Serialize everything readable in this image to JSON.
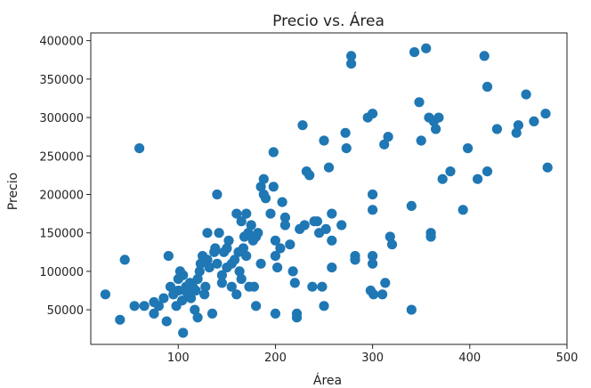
{
  "chart_data": {
    "type": "scatter",
    "title": "Precio vs. Área",
    "xlabel": "Área",
    "ylabel": "Precio",
    "xlim": [
      10,
      500
    ],
    "ylim": [
      5000,
      410000
    ],
    "xticks": [
      100,
      200,
      300,
      400,
      500
    ],
    "yticks": [
      50000,
      100000,
      150000,
      200000,
      250000,
      300000,
      350000,
      400000
    ],
    "xtick_labels": [
      "100",
      "200",
      "300",
      "400",
      "500"
    ],
    "ytick_labels": [
      "50000",
      "100000",
      "150000",
      "200000",
      "250000",
      "300000",
      "350000",
      "400000"
    ],
    "grid": false,
    "marker_color": "#1f77b4",
    "points": [
      [
        25,
        70000
      ],
      [
        40,
        37000
      ],
      [
        45,
        115000
      ],
      [
        55,
        55000
      ],
      [
        60,
        260000
      ],
      [
        65,
        55000
      ],
      [
        75,
        45000
      ],
      [
        75,
        60000
      ],
      [
        80,
        55000
      ],
      [
        85,
        65000
      ],
      [
        88,
        35000
      ],
      [
        90,
        120000
      ],
      [
        92,
        80000
      ],
      [
        95,
        70000
      ],
      [
        98,
        55000
      ],
      [
        100,
        75000
      ],
      [
        100,
        90000
      ],
      [
        102,
        100000
      ],
      [
        104,
        62000
      ],
      [
        105,
        95000
      ],
      [
        105,
        20000
      ],
      [
        107,
        75000
      ],
      [
        108,
        80000
      ],
      [
        110,
        70000
      ],
      [
        112,
        85000
      ],
      [
        113,
        65000
      ],
      [
        115,
        80000
      ],
      [
        117,
        50000
      ],
      [
        118,
        75000
      ],
      [
        120,
        90000
      ],
      [
        120,
        40000
      ],
      [
        122,
        100000
      ],
      [
        123,
        110000
      ],
      [
        125,
        120000
      ],
      [
        127,
        70000
      ],
      [
        128,
        80000
      ],
      [
        130,
        150000
      ],
      [
        130,
        115000
      ],
      [
        132,
        105000
      ],
      [
        135,
        45000
      ],
      [
        137,
        125000
      ],
      [
        138,
        130000
      ],
      [
        140,
        200000
      ],
      [
        140,
        110000
      ],
      [
        142,
        150000
      ],
      [
        145,
        85000
      ],
      [
        145,
        95000
      ],
      [
        147,
        125000
      ],
      [
        150,
        105000
      ],
      [
        150,
        130000
      ],
      [
        152,
        140000
      ],
      [
        155,
        110000
      ],
      [
        155,
        80000
      ],
      [
        158,
        115000
      ],
      [
        160,
        175000
      ],
      [
        160,
        70000
      ],
      [
        162,
        125000
      ],
      [
        163,
        100000
      ],
      [
        165,
        165000
      ],
      [
        165,
        90000
      ],
      [
        167,
        130000
      ],
      [
        168,
        145000
      ],
      [
        170,
        175000
      ],
      [
        170,
        120000
      ],
      [
        172,
        150000
      ],
      [
        173,
        80000
      ],
      [
        175,
        160000
      ],
      [
        177,
        140000
      ],
      [
        178,
        80000
      ],
      [
        180,
        145000
      ],
      [
        180,
        55000
      ],
      [
        182,
        150000
      ],
      [
        185,
        210000
      ],
      [
        185,
        110000
      ],
      [
        188,
        220000
      ],
      [
        188,
        200000
      ],
      [
        190,
        195000
      ],
      [
        195,
        175000
      ],
      [
        198,
        210000
      ],
      [
        198,
        255000
      ],
      [
        200,
        140000
      ],
      [
        200,
        120000
      ],
      [
        200,
        45000
      ],
      [
        202,
        105000
      ],
      [
        205,
        130000
      ],
      [
        207,
        190000
      ],
      [
        210,
        170000
      ],
      [
        210,
        160000
      ],
      [
        215,
        135000
      ],
      [
        218,
        100000
      ],
      [
        220,
        85000
      ],
      [
        222,
        40000
      ],
      [
        222,
        45000
      ],
      [
        225,
        155000
      ],
      [
        228,
        290000
      ],
      [
        230,
        160000
      ],
      [
        232,
        230000
      ],
      [
        235,
        225000
      ],
      [
        238,
        80000
      ],
      [
        240,
        165000
      ],
      [
        243,
        165000
      ],
      [
        245,
        150000
      ],
      [
        248,
        80000
      ],
      [
        250,
        270000
      ],
      [
        250,
        55000
      ],
      [
        252,
        155000
      ],
      [
        255,
        235000
      ],
      [
        258,
        105000
      ],
      [
        258,
        175000
      ],
      [
        258,
        140000
      ],
      [
        268,
        160000
      ],
      [
        272,
        280000
      ],
      [
        273,
        260000
      ],
      [
        278,
        380000
      ],
      [
        278,
        370000
      ],
      [
        282,
        120000
      ],
      [
        282,
        115000
      ],
      [
        295,
        300000
      ],
      [
        298,
        75000
      ],
      [
        300,
        305000
      ],
      [
        300,
        200000
      ],
      [
        300,
        180000
      ],
      [
        300,
        120000
      ],
      [
        300,
        110000
      ],
      [
        301,
        70000
      ],
      [
        310,
        70000
      ],
      [
        312,
        265000
      ],
      [
        313,
        85000
      ],
      [
        316,
        275000
      ],
      [
        318,
        145000
      ],
      [
        320,
        135000
      ],
      [
        340,
        185000
      ],
      [
        340,
        50000
      ],
      [
        343,
        385000
      ],
      [
        348,
        320000
      ],
      [
        350,
        270000
      ],
      [
        355,
        390000
      ],
      [
        358,
        300000
      ],
      [
        360,
        150000
      ],
      [
        360,
        145000
      ],
      [
        363,
        295000
      ],
      [
        365,
        285000
      ],
      [
        368,
        300000
      ],
      [
        372,
        220000
      ],
      [
        380,
        230000
      ],
      [
        393,
        180000
      ],
      [
        398,
        260000
      ],
      [
        408,
        220000
      ],
      [
        415,
        380000
      ],
      [
        418,
        340000
      ],
      [
        418,
        230000
      ],
      [
        428,
        285000
      ],
      [
        448,
        280000
      ],
      [
        450,
        290000
      ],
      [
        458,
        330000
      ],
      [
        466,
        295000
      ],
      [
        478,
        305000
      ],
      [
        480,
        235000
      ]
    ]
  }
}
